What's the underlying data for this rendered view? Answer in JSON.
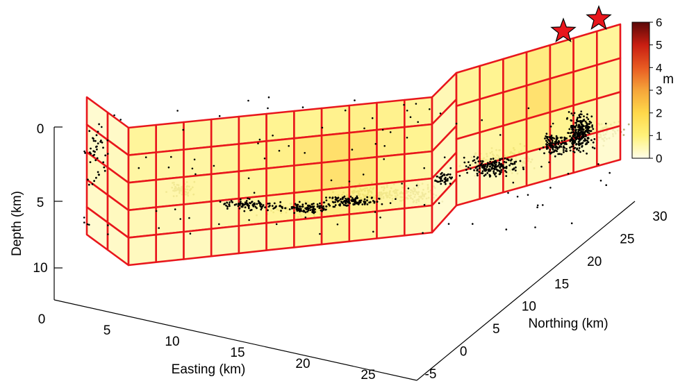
{
  "chart_data": {
    "type": "scatter",
    "subtype": "3d-fault-slip-model",
    "xlabel": "Easting (km)",
    "ylabel": "Northing (km)",
    "zlabel": "Depth (km)",
    "x_ticks": [
      "0",
      "5",
      "10",
      "15",
      "20",
      "25"
    ],
    "y_ticks": [
      "-5",
      "0",
      "5",
      "10",
      "15",
      "20",
      "25",
      "30"
    ],
    "z_ticks": [
      "0",
      "5",
      "10"
    ],
    "xlim": [
      0,
      27
    ],
    "ylim": [
      -5,
      31
    ],
    "zlim": [
      12,
      -2
    ],
    "colorbar": {
      "label": "m",
      "ticks": [
        "0",
        "1",
        "2",
        "3",
        "4",
        "5",
        "6"
      ],
      "range": [
        0,
        6
      ],
      "colormap": [
        "#fffde8",
        "#fff27a",
        "#ffd84a",
        "#f5a53a",
        "#e85a22",
        "#c81e12",
        "#5a0808"
      ]
    },
    "fault_segments": [
      {
        "name": "",
        "columns": 2,
        "rows": 5,
        "slip": [
          [
            0.3,
            0.4
          ],
          [
            0.4,
            0.5
          ],
          [
            0.5,
            0.6
          ],
          [
            0.4,
            0.5
          ],
          [
            0.3,
            0.4
          ]
        ]
      },
      {
        "name": "",
        "columns": 11,
        "rows": 5,
        "slip": [
          [
            0.9,
            0.8,
            0.8,
            0.8,
            0.9,
            1.0,
            1.0,
            1.1,
            1.2,
            1.1,
            0.9
          ],
          [
            0.8,
            0.8,
            0.8,
            0.9,
            1.0,
            1.2,
            1.6,
            2.0,
            1.8,
            1.3,
            1.0
          ],
          [
            0.7,
            0.7,
            0.8,
            0.8,
            0.9,
            1.1,
            1.5,
            1.9,
            1.6,
            1.1,
            0.8
          ],
          [
            0.6,
            0.6,
            0.6,
            0.7,
            0.8,
            0.9,
            1.1,
            1.3,
            1.1,
            0.8,
            0.6
          ],
          [
            0.5,
            0.5,
            0.5,
            0.5,
            0.6,
            0.7,
            0.8,
            0.9,
            0.8,
            0.6,
            0.5
          ]
        ]
      },
      {
        "name": "",
        "columns": 1,
        "rows": 5,
        "slip": [
          [
            0.6
          ],
          [
            0.5
          ],
          [
            0.5
          ],
          [
            0.4
          ],
          [
            0.3
          ]
        ]
      },
      {
        "name": "",
        "columns": 7,
        "rows": 4,
        "slip": [
          [
            0.9,
            1.0,
            1.3,
            1.4,
            1.2,
            1.0,
            0.9
          ],
          [
            0.8,
            1.0,
            1.5,
            1.9,
            1.6,
            1.1,
            0.8
          ],
          [
            0.6,
            0.8,
            1.0,
            1.2,
            1.0,
            0.8,
            0.6
          ],
          [
            0.4,
            0.5,
            0.6,
            0.6,
            0.5,
            0.4,
            0.3
          ]
        ]
      }
    ],
    "hypocenters": [
      {
        "name": "",
        "marker": "star",
        "color": "#e8161c"
      },
      {
        "name": "",
        "marker": "star",
        "color": "#e8161c"
      }
    ],
    "seismicity": [
      {
        "name": "",
        "color": "#000000"
      },
      {
        "name": "",
        "color": "#b5b07a"
      }
    ],
    "grid": false,
    "legend": "none"
  }
}
